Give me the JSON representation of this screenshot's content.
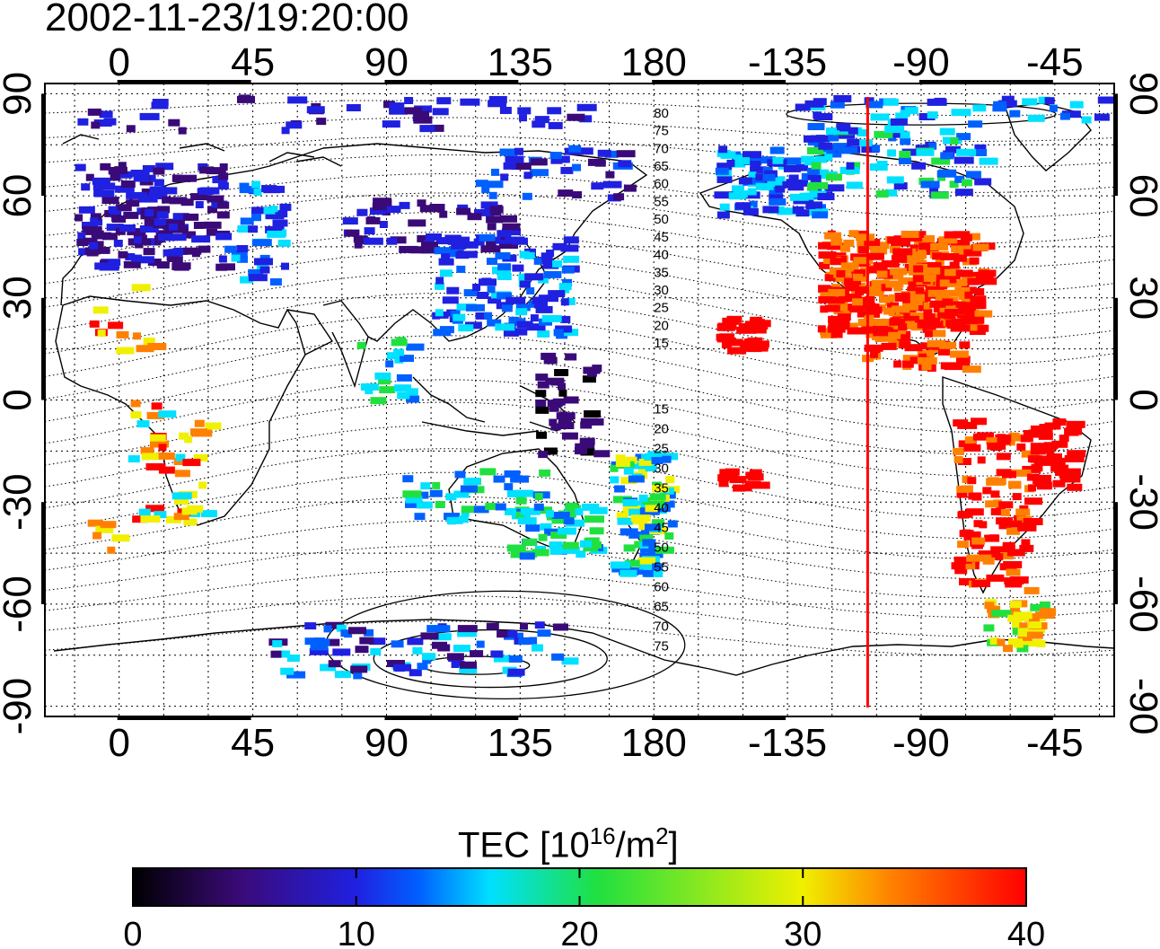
{
  "timestamp": "2002-11-23/19:20:00",
  "map": {
    "type": "global TEC map",
    "projection": "equirectangular",
    "lon_ticks": [
      "0",
      "45",
      "90",
      "135",
      "180",
      "-135",
      "-90",
      "-45"
    ],
    "lon_tick_values": [
      0,
      45,
      90,
      135,
      180,
      225,
      270,
      315
    ],
    "lat_ticks": [
      "90",
      "60",
      "30",
      "0",
      "-30",
      "-60",
      "-90"
    ],
    "lat_tick_values": [
      90,
      60,
      30,
      0,
      -30,
      -60,
      -90
    ],
    "lon_range": [
      -25,
      335
    ],
    "lat_range": [
      -93,
      93
    ],
    "terminator_longitude": -108,
    "terminator_color": "#ff0000",
    "grid": "dotted",
    "contour_labels_north": [
      "80",
      "75",
      "70",
      "65",
      "60",
      "55",
      "50",
      "45",
      "40",
      "35",
      "30",
      "25",
      "20",
      "15"
    ],
    "contour_labels_south": [
      "15",
      "20",
      "25",
      "30",
      "35",
      "40",
      "45",
      "50",
      "55",
      "60",
      "65",
      "70",
      "75"
    ]
  },
  "colorbar": {
    "label_prefix": "TEC  [10",
    "label_exp1": "16",
    "label_mid": "/m",
    "label_exp2": "2",
    "label_suffix": "]",
    "min": 0,
    "max": 40,
    "ticks": [
      "0",
      "10",
      "20",
      "30",
      "40"
    ],
    "colors": [
      "#000000",
      "#3a0a78",
      "#2020e0",
      "#0060ff",
      "#00e0ff",
      "#20e040",
      "#f0f000",
      "#ff8000",
      "#ff0000"
    ]
  }
}
